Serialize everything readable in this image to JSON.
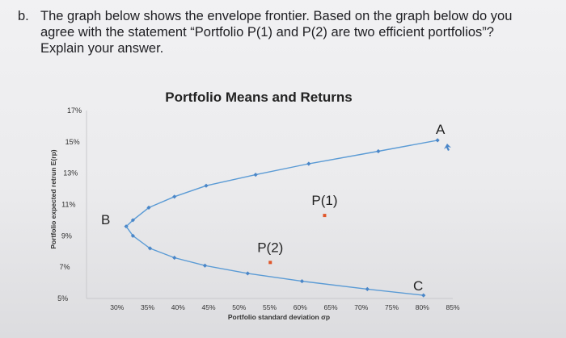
{
  "question": {
    "label": "b.",
    "text": "The graph below shows the envelope frontier. Based on the graph below do you agree with the statement “Portfolio P(1) and P(2) are two efficient portfolios”? Explain your answer."
  },
  "chart_data": {
    "type": "scatter",
    "title": "Portfolio Means and Returns",
    "xlabel": "Portfolio standard deviation σp",
    "ylabel": "Portfolio expected retrun E(rp)",
    "xlim": [
      25,
      85
    ],
    "ylim": [
      5,
      17
    ],
    "x_ticks": [
      "30%",
      "35%",
      "40%",
      "45%",
      "50%",
      "55%",
      "60%",
      "65%",
      "70%",
      "75%",
      "80%",
      "85%"
    ],
    "y_ticks": [
      "17%",
      "15%",
      "13%",
      "11%",
      "9%",
      "7%",
      "5%"
    ],
    "y_tick_values": [
      17,
      15,
      13,
      11,
      9,
      7,
      5
    ],
    "series": [
      {
        "values": [
          [
            31.5,
            9.6
          ],
          [
            32.6,
            10.0
          ],
          [
            35.2,
            10.8
          ],
          [
            39.4,
            11.5
          ],
          [
            44.6,
            12.2
          ],
          [
            52.7,
            12.9
          ],
          [
            61.4,
            13.6
          ],
          [
            72.8,
            14.4
          ],
          [
            82.5,
            15.1
          ]
        ]
      },
      {
        "values": [
          [
            32.6,
            9.0
          ],
          [
            35.4,
            8.2
          ],
          [
            39.4,
            7.6
          ],
          [
            44.4,
            7.1
          ],
          [
            51.4,
            6.6
          ],
          [
            60.3,
            6.1
          ],
          [
            71.0,
            5.6
          ],
          [
            80.2,
            5.2
          ]
        ]
      }
    ],
    "highlight_points": [
      {
        "label": "P(1)",
        "x": 64.0,
        "y": 10.3
      },
      {
        "label": "P(2)",
        "x": 55.1,
        "y": 7.3
      }
    ],
    "annotations": {
      "A": "A",
      "B": "B",
      "C": "C"
    },
    "grid": false,
    "legend": "none"
  },
  "colors": {
    "series": "#5b9bd5",
    "points": "#4a86c8",
    "highlight": "#e0562a"
  }
}
